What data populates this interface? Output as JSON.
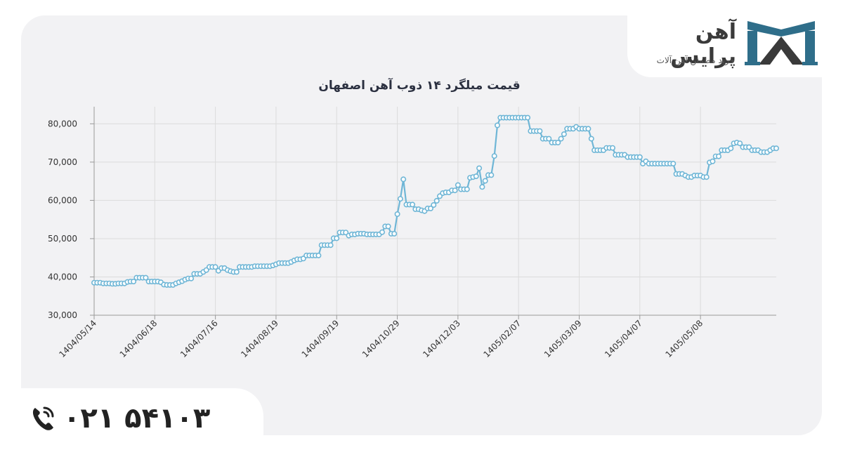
{
  "brand": {
    "name": "آهن پرایس",
    "tagline": "خرید مطمئن آهن آلات",
    "primary_color": "#2f6e8a"
  },
  "contact": {
    "phone": "۰۲۱ ۵۴۱۰۳",
    "icon": "phone-icon"
  },
  "chart_data": {
    "type": "line",
    "title": "قیمت میلگرد ۱۴ ذوب آهن اصفهان",
    "xlabel": "",
    "ylabel": "",
    "ylim": [
      30000,
      83000
    ],
    "yticks": [
      30000,
      40000,
      50000,
      60000,
      70000,
      80000
    ],
    "ytick_labels": [
      "30,000",
      "40,000",
      "50,000",
      "60,000",
      "70,000",
      "80,000"
    ],
    "grid": true,
    "line_color": "#6fb6d6",
    "x_tick_labels": [
      "1404/05/14",
      "1404/06/18",
      "1404/07/16",
      "1404/08/19",
      "1404/09/19",
      "1404/10/29",
      "1404/12/03",
      "1405/02/07",
      "1405/03/09",
      "1405/04/07",
      "1405/05/08"
    ],
    "x_tick_index": [
      0,
      20,
      40,
      60,
      80,
      100,
      120,
      140,
      160,
      180,
      200
    ],
    "series": [
      {
        "values": [
          38500,
          38500,
          38500,
          38300,
          38300,
          38300,
          38200,
          38200,
          38300,
          38300,
          38300,
          38700,
          38800,
          38800,
          39800,
          39800,
          39800,
          39800,
          38800,
          38800,
          38800,
          38800,
          38600,
          38000,
          37900,
          37900,
          37900,
          38300,
          38600,
          38900,
          39300,
          39600,
          39600,
          40800,
          40800,
          40800,
          41300,
          41800,
          42600,
          42600,
          42600,
          41600,
          42300,
          42300,
          41800,
          41500,
          41300,
          41300,
          42600,
          42600,
          42600,
          42600,
          42600,
          42800,
          42800,
          42800,
          42800,
          42800,
          42800,
          43000,
          43300,
          43600,
          43600,
          43600,
          43600,
          43900,
          44300,
          44600,
          44600,
          44800,
          45600,
          45600,
          45600,
          45600,
          45600,
          48300,
          48300,
          48300,
          48300,
          50100,
          50100,
          51600,
          51600,
          51600,
          50800,
          51100,
          51100,
          51300,
          51300,
          51300,
          51100,
          51100,
          51100,
          51100,
          51100,
          51700,
          53200,
          53200,
          51300,
          51300,
          56400,
          60400,
          65500,
          58900,
          58900,
          58900,
          57700,
          57700,
          57400,
          57200,
          57900,
          57900,
          58800,
          59900,
          61100,
          61900,
          62100,
          62100,
          62600,
          62600,
          64000,
          62900,
          62900,
          62900,
          65900,
          66100,
          66300,
          68400,
          63500,
          65100,
          66600,
          66600,
          71600,
          79600,
          81600,
          81600,
          81600,
          81600,
          81600,
          81600,
          81600,
          81600,
          81600,
          81600,
          78100,
          78100,
          78100,
          78100,
          76100,
          76100,
          76100,
          75100,
          75100,
          75100,
          76100,
          77300,
          78700,
          78700,
          78700,
          79200,
          78700,
          78700,
          78700,
          78700,
          76100,
          73100,
          73100,
          73100,
          73100,
          73700,
          73700,
          73700,
          71900,
          71900,
          71900,
          71900,
          71300,
          71300,
          71300,
          71300,
          71300,
          69600,
          70200,
          69600,
          69600,
          69600,
          69600,
          69600,
          69600,
          69600,
          69600,
          69600,
          66900,
          66900,
          66900,
          66500,
          66100,
          66100,
          66500,
          66500,
          66500,
          66100,
          66100,
          69900,
          70200,
          71500,
          71500,
          73100,
          73100,
          73100,
          73600,
          74900,
          75100,
          74900,
          73900,
          73900,
          73900,
          73100,
          73100,
          73100,
          72600,
          72600,
          72600,
          73100,
          73600,
          73600
        ]
      }
    ]
  }
}
